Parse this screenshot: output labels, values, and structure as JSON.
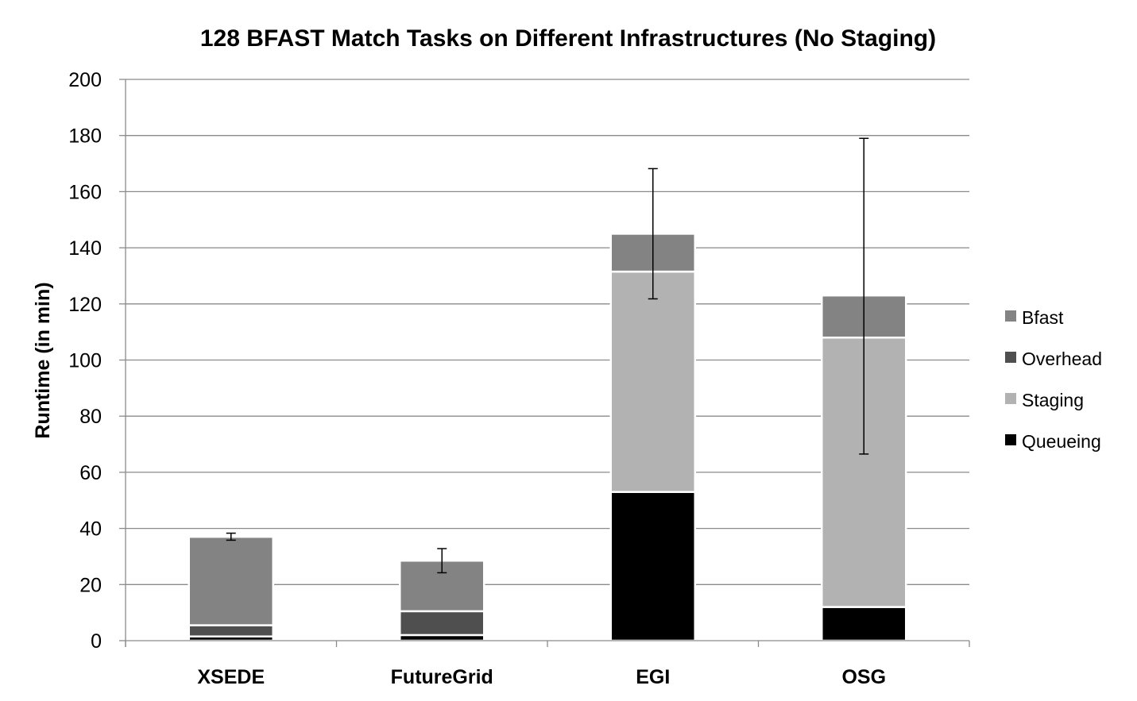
{
  "chart_data": {
    "type": "bar",
    "stacked": true,
    "title": "128 BFAST Match Tasks on Different Infrastructures (No Staging)",
    "xlabel": "",
    "ylabel": "Runtime (in min)",
    "ylim": [
      0,
      200
    ],
    "yticks": [
      "0",
      "20",
      "40",
      "60",
      "80",
      "100",
      "120",
      "140",
      "160",
      "180",
      "200"
    ],
    "grid": true,
    "legend_position": "right",
    "categories": [
      "XSEDE",
      "FutureGrid",
      "EGI",
      "OSG"
    ],
    "series": [
      {
        "name": "Queueing",
        "color": "#000000",
        "values": [
          1.5,
          2,
          53,
          12
        ]
      },
      {
        "name": "Staging",
        "color": "#b2b2b2",
        "values": [
          0,
          0,
          78.5,
          96
        ]
      },
      {
        "name": "Overhead",
        "color": "#4f4f4f",
        "values": [
          4,
          8.5,
          0,
          0
        ]
      },
      {
        "name": "Bfast",
        "color": "#838383",
        "values": [
          31.5,
          18,
          13.5,
          15
        ]
      }
    ],
    "legend_order": [
      "Bfast",
      "Overhead",
      "Staging",
      "Queueing"
    ],
    "error_bars": [
      {
        "category": "XSEDE",
        "low": 35.8,
        "high": 38.3
      },
      {
        "category": "FutureGrid",
        "low": 24.2,
        "high": 32.8
      },
      {
        "category": "EGI",
        "low": 121.8,
        "high": 168.2
      },
      {
        "category": "OSG",
        "low": 66.5,
        "high": 179
      }
    ]
  }
}
